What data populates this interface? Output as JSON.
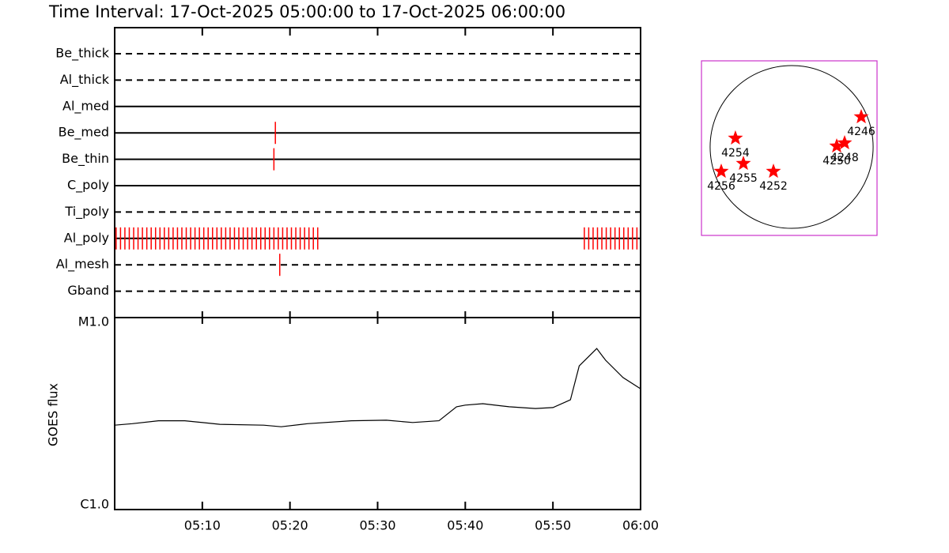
{
  "chart_data": [
    {
      "type": "timeline",
      "title": "Time Interval: 17-Oct-2025 05:00:00 to 17-Oct-2025 06:00:00",
      "xlim": [
        "05:00",
        "06:00"
      ],
      "event_color": "#ff0000",
      "rows": [
        {
          "name": "Be_thick",
          "style": "dashed",
          "events": []
        },
        {
          "name": "Al_thick",
          "style": "dashed",
          "events": []
        },
        {
          "name": "Al_med",
          "style": "solid",
          "events": []
        },
        {
          "name": "Be_med",
          "style": "solid",
          "events": [
            "05:18:20"
          ]
        },
        {
          "name": "Be_thin",
          "style": "solid",
          "events": [
            "05:18:10"
          ]
        },
        {
          "name": "C_poly",
          "style": "solid",
          "events": []
        },
        {
          "name": "Ti_poly",
          "style": "dashed",
          "events": []
        },
        {
          "name": "Al_poly",
          "style": "solid",
          "events": [
            "05:00:10",
            "05:00:40",
            "05:01:10",
            "05:01:40",
            "05:02:10",
            "05:02:40",
            "05:03:10",
            "05:03:40",
            "05:04:10",
            "05:04:40",
            "05:05:10",
            "05:05:40",
            "05:06:10",
            "05:06:40",
            "05:07:10",
            "05:07:40",
            "05:08:10",
            "05:08:40",
            "05:09:10",
            "05:09:40",
            "05:10:10",
            "05:10:40",
            "05:11:10",
            "05:11:40",
            "05:12:10",
            "05:12:40",
            "05:13:10",
            "05:13:40",
            "05:14:10",
            "05:14:40",
            "05:15:10",
            "05:15:40",
            "05:16:10",
            "05:16:40",
            "05:17:10",
            "05:17:40",
            "05:18:10",
            "05:18:40",
            "05:19:10",
            "05:19:40",
            "05:20:10",
            "05:20:40",
            "05:21:10",
            "05:21:40",
            "05:22:10",
            "05:22:40",
            "05:23:10",
            "05:53:35",
            "05:54:05",
            "05:54:35",
            "05:55:05",
            "05:55:35",
            "05:56:05",
            "05:56:35",
            "05:57:05",
            "05:57:35",
            "05:58:05",
            "05:58:35",
            "05:59:05",
            "05:59:35"
          ]
        },
        {
          "name": "Al_mesh",
          "style": "dashed",
          "events": [
            "05:18:50"
          ]
        },
        {
          "name": "Gband",
          "style": "dashed",
          "events": []
        }
      ]
    },
    {
      "type": "line",
      "ylabel": "GOES flux",
      "log_scale": true,
      "color": "#000000",
      "x": [
        "05:00",
        "05:02",
        "05:05",
        "05:08",
        "05:12",
        "05:17",
        "05:19",
        "05:22",
        "05:27",
        "05:31",
        "05:34",
        "05:37",
        "05:39",
        "05:40",
        "05:42",
        "05:45",
        "05:48",
        "05:50",
        "05:52",
        "05:53",
        "05:55",
        "05:56",
        "05:58",
        "06:00"
      ],
      "values": [
        2.75e-06,
        2.8e-06,
        2.9e-06,
        2.9e-06,
        2.78e-06,
        2.75e-06,
        2.7e-06,
        2.8e-06,
        2.9e-06,
        2.92e-06,
        2.84e-06,
        2.9e-06,
        3.43e-06,
        3.5e-06,
        3.56e-06,
        3.43e-06,
        3.36e-06,
        3.4e-06,
        3.73e-06,
        5.6e-06,
        6.9e-06,
        6e-06,
        4.87e-06,
        4.26e-06
      ],
      "xlim": [
        "05:00",
        "06:00"
      ],
      "xticks": [
        "05:10",
        "05:20",
        "05:30",
        "05:40",
        "05:50",
        "06:00"
      ],
      "ylim": [
        1e-06,
        1e-05
      ],
      "yticks": [
        {
          "value": 1e-06,
          "label": "C1.0"
        },
        {
          "value": 1e-05,
          "label": "M1.0"
        }
      ]
    },
    {
      "type": "disk",
      "color": "#ff0000",
      "frame_color": "#cc33cc",
      "disk_radius": 960,
      "xlim": [
        -1062,
        1006
      ],
      "ylim": [
        -1044,
        1016
      ],
      "points": [
        {
          "label": "4246",
          "x": 820,
          "y": 354
        },
        {
          "label": "4254",
          "x": -662,
          "y": 103
        },
        {
          "label": "4248",
          "x": 624,
          "y": 47
        },
        {
          "label": "4250",
          "x": 531,
          "y": 9
        },
        {
          "label": "4255",
          "x": -568,
          "y": -196
        },
        {
          "label": "4252",
          "x": -214,
          "y": -289
        },
        {
          "label": "4256",
          "x": -829,
          "y": -289
        }
      ]
    }
  ]
}
